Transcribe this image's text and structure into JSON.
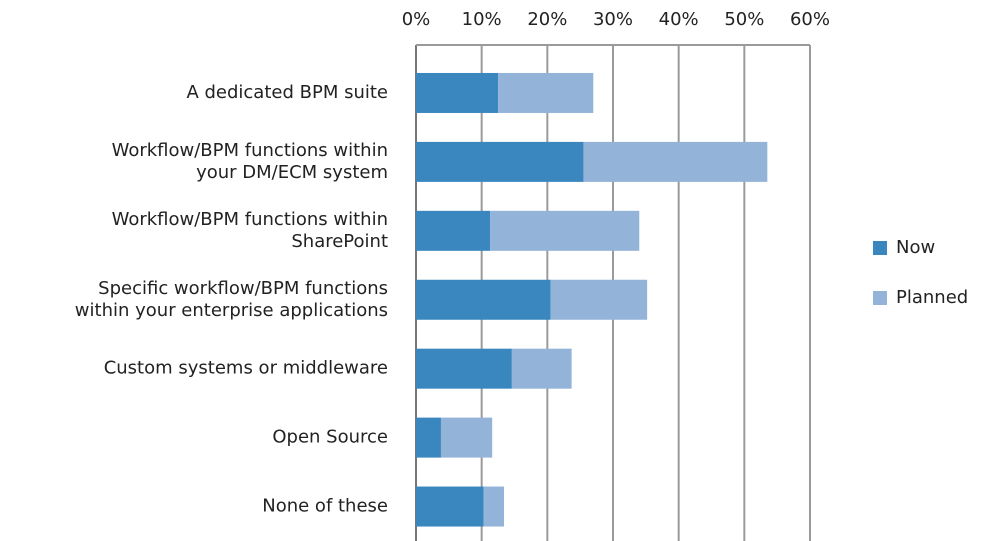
{
  "chart_data": {
    "type": "stacked-bar-horizontal",
    "categories": [
      [
        "A dedicated BPM suite"
      ],
      [
        "Workflow/BPM functions within",
        "your DM/ECM  system"
      ],
      [
        "Workflow/BPM functions within",
        "SharePoint"
      ],
      [
        "Specific workflow/BPM functions",
        "within your enterprise applications"
      ],
      [
        "Custom systems  or middleware"
      ],
      [
        "Open Source"
      ],
      [
        "None of these"
      ]
    ],
    "series": [
      {
        "name": "Now",
        "color": "#3a87bf",
        "values": [
          12.5,
          25.5,
          11.3,
          20.5,
          14.6,
          3.8,
          10.3
        ]
      },
      {
        "name": "Planned",
        "color": "#93b3d8",
        "values": [
          14.5,
          28,
          22.7,
          14.7,
          9.1,
          7.8,
          3.1
        ]
      }
    ],
    "xlim": [
      0,
      60
    ],
    "xticks": [
      {
        "value": 0,
        "label": "0%"
      },
      {
        "value": 10,
        "label": "10%"
      },
      {
        "value": 20,
        "label": "20%"
      },
      {
        "value": 30,
        "label": "30%"
      },
      {
        "value": 40,
        "label": "40%"
      },
      {
        "value": 50,
        "label": "50%"
      },
      {
        "value": 60,
        "label": "60%"
      }
    ],
    "grid": true,
    "legend": "right"
  }
}
